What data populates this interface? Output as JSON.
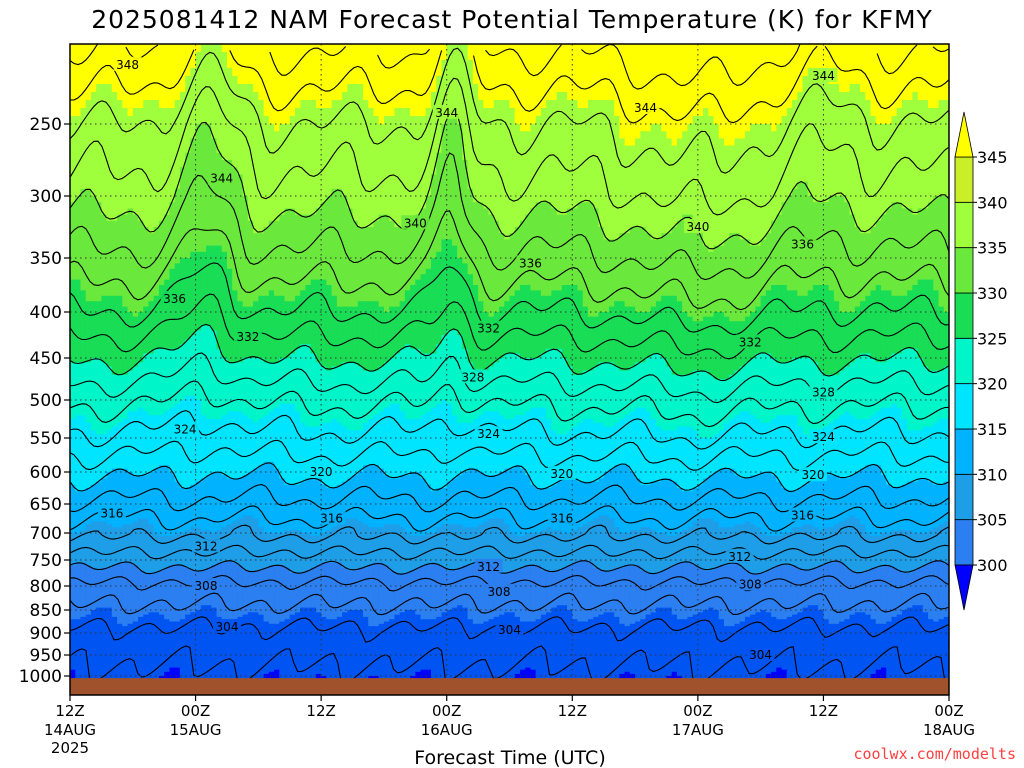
{
  "colors": {
    "fill": [
      "#0000ff",
      "#0055f2",
      "#2b7ff0",
      "#1f9ee8",
      "#00b2ff",
      "#00e5ff",
      "#00f5c8",
      "#00f080",
      "#18dd55",
      "#6ae83c",
      "#a0ff3c",
      "#caee28",
      "#ffff00"
    ],
    "surface": "#a0522d",
    "credit": "#ff4040"
  },
  "chart_data": {
    "type": "heatmap",
    "title": "2025081412 NAM Forecast Potential Temperature (K) for KFMY",
    "xlabel": "Forecast Time (UTC)",
    "ylabel": "",
    "x_hours": [
      0,
      84
    ],
    "x_ticks": [
      {
        "h": 0,
        "l1": "12Z",
        "l2": "14AUG",
        "l3": "2025"
      },
      {
        "h": 12,
        "l1": "00Z",
        "l2": "15AUG",
        "l3": ""
      },
      {
        "h": 24,
        "l1": "12Z",
        "l2": "",
        "l3": ""
      },
      {
        "h": 36,
        "l1": "00Z",
        "l2": "16AUG",
        "l3": ""
      },
      {
        "h": 48,
        "l1": "12Z",
        "l2": "",
        "l3": ""
      },
      {
        "h": 60,
        "l1": "00Z",
        "l2": "17AUG",
        "l3": ""
      },
      {
        "h": 72,
        "l1": "12Z",
        "l2": "",
        "l3": ""
      },
      {
        "h": 84,
        "l1": "00Z",
        "l2": "18AUG",
        "l3": ""
      }
    ],
    "y_pressure_hpa": [
      200,
      1025
    ],
    "y_ticks": [
      "250",
      "300",
      "350",
      "400",
      "450",
      "500",
      "550",
      "600",
      "650",
      "700",
      "750",
      "800",
      "850",
      "900",
      "950",
      "1000"
    ],
    "colorbar": {
      "levels": [
        300,
        305,
        310,
        315,
        320,
        325,
        330,
        335,
        340,
        345
      ],
      "labels": [
        "300",
        "305",
        "310",
        "315",
        "320",
        "325",
        "330",
        "335",
        "340",
        "345"
      ]
    },
    "contour_interval_k": 2,
    "contour_labels": [
      {
        "t": "348",
        "h": 5.5,
        "p": 213
      },
      {
        "t": "344",
        "h": 36,
        "p": 243
      },
      {
        "t": "344",
        "h": 55,
        "p": 240
      },
      {
        "t": "344",
        "h": 72,
        "p": 220
      },
      {
        "t": "344",
        "h": 14.5,
        "p": 288
      },
      {
        "t": "340",
        "h": 33,
        "p": 322
      },
      {
        "t": "340",
        "h": 60,
        "p": 325
      },
      {
        "t": "336",
        "h": 44,
        "p": 355
      },
      {
        "t": "336",
        "h": 70,
        "p": 339
      },
      {
        "t": "336",
        "h": 10,
        "p": 388
      },
      {
        "t": "332",
        "h": 40,
        "p": 418
      },
      {
        "t": "332",
        "h": 17,
        "p": 427
      },
      {
        "t": "332",
        "h": 65,
        "p": 433
      },
      {
        "t": "328",
        "h": 38.5,
        "p": 473
      },
      {
        "t": "328",
        "h": 72,
        "p": 491
      },
      {
        "t": "324",
        "h": 11,
        "p": 539
      },
      {
        "t": "324",
        "h": 40,
        "p": 545
      },
      {
        "t": "324",
        "h": 72,
        "p": 549
      },
      {
        "t": "320",
        "h": 24,
        "p": 600
      },
      {
        "t": "320",
        "h": 47,
        "p": 603
      },
      {
        "t": "320",
        "h": 71,
        "p": 605
      },
      {
        "t": "316",
        "h": 4,
        "p": 666
      },
      {
        "t": "316",
        "h": 25,
        "p": 675
      },
      {
        "t": "316",
        "h": 47,
        "p": 675
      },
      {
        "t": "316",
        "h": 70,
        "p": 670
      },
      {
        "t": "312",
        "h": 13,
        "p": 725
      },
      {
        "t": "312",
        "h": 40,
        "p": 763
      },
      {
        "t": "312",
        "h": 64,
        "p": 744
      },
      {
        "t": "308",
        "h": 13,
        "p": 800
      },
      {
        "t": "308",
        "h": 41,
        "p": 812
      },
      {
        "t": "308",
        "h": 65,
        "p": 797
      },
      {
        "t": "304",
        "h": 15,
        "p": 887
      },
      {
        "t": "304",
        "h": 42,
        "p": 893
      },
      {
        "t": "304",
        "h": 66,
        "p": 950
      }
    ]
  },
  "credit": "coolwx.com/modelts"
}
